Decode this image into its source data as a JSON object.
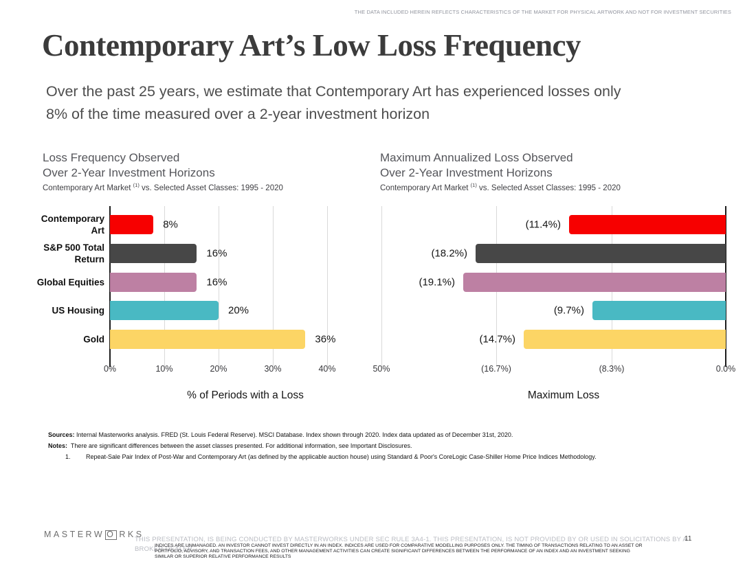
{
  "top_disclaimer": "THE DATA INCLUDED HEREIN REFLECTS CHARACTERISTICS OF THE MARKET FOR PHYSICAL ARTWORK AND NOT FOR INVESTMENT SECURITIES",
  "title": "Contemporary Art’s Low Loss Frequency",
  "subtitle": "Over the past 25 years, we estimate that Contemporary Art has experienced losses only\n8% of the time measured over a 2-year investment horizon",
  "chart_data": [
    {
      "type": "bar",
      "orientation": "horizontal",
      "anchor": "left",
      "title_line1": "Loss Frequency Observed",
      "title_line2": "Over 2-Year Investment Horizons",
      "subtitle_main": "Contemporary Art Market",
      "subtitle_footnote": "(1)",
      "subtitle_rest": "vs. Selected Asset Classes: 1995 - 2020",
      "categories": [
        "Contemporary\nArt",
        "S&P 500 Total\nReturn",
        "Global Equities",
        "US Housing",
        "Gold"
      ],
      "show_category_labels": true,
      "values": [
        8,
        16,
        16,
        20,
        36
      ],
      "value_labels": [
        "8%",
        "16%",
        "16%",
        "20%",
        "36%"
      ],
      "bar_colors": [
        "#f70000",
        "#474747",
        "#bd80a3",
        "#49b9c3",
        "#fcd565"
      ],
      "xlabel": "% of Periods with a Loss",
      "xlim": [
        0,
        50
      ],
      "xticks": [
        {
          "value": 0,
          "label": "0%"
        },
        {
          "value": 10,
          "label": "10%"
        },
        {
          "value": 20,
          "label": "20%"
        },
        {
          "value": 30,
          "label": "30%"
        },
        {
          "value": 40,
          "label": "40%"
        },
        {
          "value": 50,
          "label": "50%"
        }
      ],
      "grid": true,
      "gridline_color": "#d9d9d9"
    },
    {
      "type": "bar",
      "orientation": "horizontal",
      "anchor": "right",
      "title_line1": "Maximum Annualized Loss Observed",
      "title_line2": "Over 2-Year Investment Horizons",
      "subtitle_main": "Contemporary Art Market",
      "subtitle_footnote": "(1)",
      "subtitle_rest": "vs. Selected Asset Classes: 1995 - 2020",
      "categories": [
        "Contemporary\nArt",
        "S&P 500 Total\nReturn",
        "Global Equities",
        "US Housing",
        "Gold"
      ],
      "show_category_labels": false,
      "values": [
        -11.4,
        -18.2,
        -19.1,
        -9.7,
        -14.7
      ],
      "value_labels": [
        "(11.4%)",
        "(18.2%)",
        "(19.1%)",
        "(9.7%)",
        "(14.7%)"
      ],
      "bar_colors": [
        "#f70000",
        "#474747",
        "#bd80a3",
        "#49b9c3",
        "#fcd565"
      ],
      "xlabel": "Maximum Loss",
      "xlim": [
        -20.8,
        0
      ],
      "xticks": [
        {
          "value": -16.7,
          "label": "(16.7%)"
        },
        {
          "value": -8.3,
          "label": "(8.3%)"
        },
        {
          "value": 0,
          "label": "0.0%"
        }
      ],
      "grid": true,
      "gridline_color": "#d9d9d9"
    }
  ],
  "sources": {
    "sources_label": "Sources:",
    "sources_text": " Internal Masterworks analysis. FRED (St. Louis Federal Reserve). MSCI Database. Index shown through 2020. Index data updated as of December 31st, 2020.",
    "notes_label": "Notes:",
    "notes_text": "  There are significant differences between the asset classes presented. For additional information, see Important Disclosures.",
    "note1_num": "1.",
    "note1_text": "Repeat-Sale Pair Index of Post-War and Contemporary Art (as defined by the applicable auction house) using Standard & Poor's CoreLogic Case-Shiller Home Price Indices Methodology."
  },
  "footer": {
    "logo_prefix": "MASTERW",
    "logo_boxed_letter": "O",
    "logo_suffix": "RKS",
    "gray_line1": "THIS PRESENTATION, IS BEING CONDUCTED BY MASTERWORKS UNDER SEC RULE 3A4-1. THIS PRESENTATION, IS NOT PROVIDED BY OR USED IN SOLICITATIONS BY A",
    "gray_line2": "BROKER-DEALER.",
    "page_number": "11",
    "fine_print_lines": [
      "INDICES ARE UNMANAGED. AN INVESTOR CANNOT INVEST DIRECTLY IN AN INDEX. INDICES ARE USED FOR COMPARATIVE MODELLING PURPOSES ONLY. THE TIMING OF TRANSACTIONS RELATING TO AN ASSET OR",
      "PORTFOLIO, ADVISORY, AND TRANSACTION FEES, AND OTHER MANAGEMENT ACTIVITIES CAN CREATE SIGNIFICANT DIFFERENCES BETWEEN THE PERFORMANCE OF AN INDEX AND AN INVESTMENT SEEKING",
      "SIMILAR OR SUPERIOR RELATIVE PERFORMANCE RESULTS"
    ]
  }
}
